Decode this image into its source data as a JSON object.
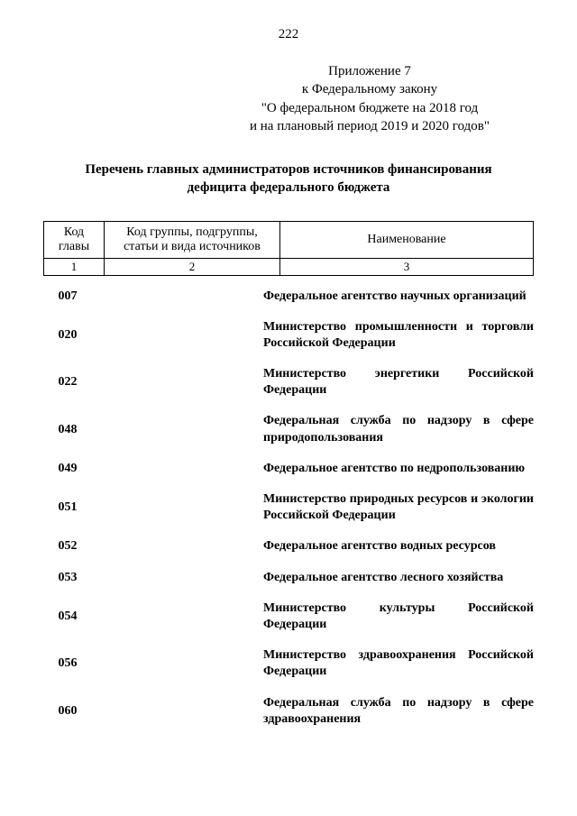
{
  "page_number": "222",
  "annex": {
    "line1": "Приложение 7",
    "line2": "к Федеральному закону",
    "line3": "\"О федеральном бюджете на 2018 год",
    "line4": "и на плановый период 2019 и 2020 годов\""
  },
  "title_line1": "Перечень главных администраторов источников финансирования",
  "title_line2": "дефицита федерального бюджета",
  "columns": {
    "c1": "Код главы",
    "c2": "Код группы, подгруппы, статьи и вида источников",
    "c3": "Наименование",
    "n1": "1",
    "n2": "2",
    "n3": "3"
  },
  "rows": [
    {
      "code": "007",
      "name": "Федеральное агентство научных организаций"
    },
    {
      "code": "020",
      "name": "Министерство промышленности и торговли Российской Федерации"
    },
    {
      "code": "022",
      "name": "Министерство энергетики Российской Федерации"
    },
    {
      "code": "048",
      "name": "Федеральная служба по надзору в сфере природопользования"
    },
    {
      "code": "049",
      "name": "Федеральное агентство по недропользованию"
    },
    {
      "code": "051",
      "name": "Министерство природных ресурсов и экологии Российской Федерации"
    },
    {
      "code": "052",
      "name": "Федеральное агентство водных ресурсов"
    },
    {
      "code": "053",
      "name": "Федеральное агентство лесного хозяйства"
    },
    {
      "code": "054",
      "name": "Министерство культуры Российской Федерации"
    },
    {
      "code": "056",
      "name": "Министерство здравоохранения Российской Федерации"
    },
    {
      "code": "060",
      "name": "Федеральная служба по надзору в сфере здравоохранения"
    }
  ]
}
